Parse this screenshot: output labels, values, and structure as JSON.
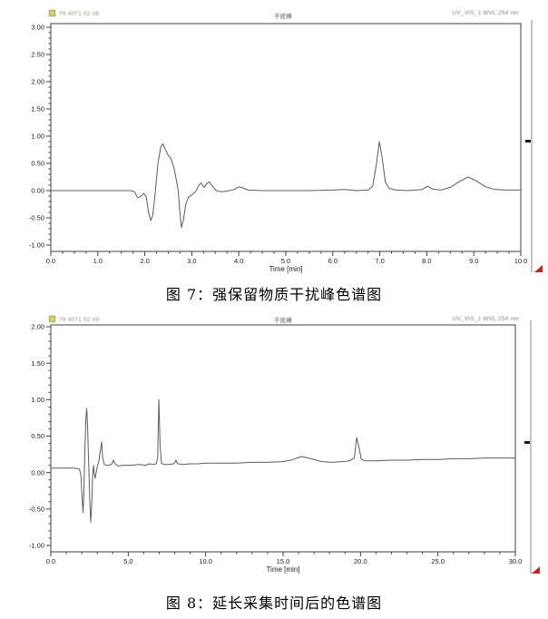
{
  "colors": {
    "trace": "#5c5c5c",
    "frame": "#3f3f3f",
    "tick_text": "#1f1f1f",
    "corner_marker_red": "#c0271d",
    "file_icon_yellow": "#d9d96e"
  },
  "figure7": {
    "caption": "图 7：强保留物质干扰峰色谱图",
    "header": {
      "left": "79 4071 02 #8",
      "center": "干扰峰",
      "right": "UV_VIS_1 WVL:254 nm"
    }
  },
  "figure8": {
    "caption": "图 8：延长采集时间后的色谱图",
    "header": {
      "left": "79 4071 02 #9",
      "center": "干扰峰",
      "right": "UV_VIS_1 WVL:254 nm"
    }
  },
  "chart_data": [
    {
      "type": "line",
      "title": "图 7：强保留物质干扰峰色谱图",
      "xlabel": "Time [min]",
      "ylabel": "",
      "xlim": [
        0,
        10
      ],
      "ylim": [
        -1.0,
        3.0
      ],
      "xtick_major": 1.0,
      "xtick_minor": 0.25,
      "ytick_major": 0.5,
      "ytick_minor": 0.1,
      "grid": false,
      "legend": "none",
      "series": [
        {
          "name": "UV_VIS_1",
          "points": [
            [
              0,
              0
            ],
            [
              0.5,
              0
            ],
            [
              1.0,
              0
            ],
            [
              1.5,
              0
            ],
            [
              1.7,
              0
            ],
            [
              1.78,
              -0.02
            ],
            [
              1.85,
              -0.13
            ],
            [
              1.92,
              -0.1
            ],
            [
              1.98,
              -0.05
            ],
            [
              2.03,
              -0.12
            ],
            [
              2.08,
              -0.4
            ],
            [
              2.13,
              -0.55
            ],
            [
              2.17,
              -0.45
            ],
            [
              2.22,
              -0.05
            ],
            [
              2.28,
              0.5
            ],
            [
              2.34,
              0.8
            ],
            [
              2.38,
              0.86
            ],
            [
              2.44,
              0.75
            ],
            [
              2.5,
              0.65
            ],
            [
              2.56,
              0.58
            ],
            [
              2.62,
              0.42
            ],
            [
              2.67,
              0.2
            ],
            [
              2.71,
              0.0
            ],
            [
              2.75,
              -0.45
            ],
            [
              2.78,
              -0.68
            ],
            [
              2.82,
              -0.55
            ],
            [
              2.87,
              -0.25
            ],
            [
              2.93,
              -0.12
            ],
            [
              3.0,
              -0.08
            ],
            [
              3.08,
              -0.02
            ],
            [
              3.15,
              0.1
            ],
            [
              3.2,
              0.14
            ],
            [
              3.26,
              0.06
            ],
            [
              3.32,
              0.13
            ],
            [
              3.37,
              0.16
            ],
            [
              3.44,
              0.08
            ],
            [
              3.52,
              0.0
            ],
            [
              3.62,
              -0.02
            ],
            [
              3.75,
              -0.01
            ],
            [
              3.9,
              0.02
            ],
            [
              4.0,
              0.07
            ],
            [
              4.08,
              0.05
            ],
            [
              4.2,
              0.01
            ],
            [
              4.5,
              0
            ],
            [
              5.0,
              0
            ],
            [
              5.5,
              0
            ],
            [
              6.0,
              0.01
            ],
            [
              6.25,
              0.02
            ],
            [
              6.5,
              0
            ],
            [
              6.75,
              0.01
            ],
            [
              6.85,
              0.08
            ],
            [
              6.93,
              0.5
            ],
            [
              6.99,
              0.9
            ],
            [
              7.05,
              0.6
            ],
            [
              7.12,
              0.15
            ],
            [
              7.2,
              0.04
            ],
            [
              7.35,
              0.01
            ],
            [
              7.6,
              0
            ],
            [
              7.9,
              0.02
            ],
            [
              8.02,
              0.08
            ],
            [
              8.12,
              0.03
            ],
            [
              8.3,
              0.01
            ],
            [
              8.5,
              0.06
            ],
            [
              8.7,
              0.17
            ],
            [
              8.88,
              0.25
            ],
            [
              9.05,
              0.18
            ],
            [
              9.25,
              0.07
            ],
            [
              9.45,
              0.02
            ],
            [
              9.7,
              0.01
            ],
            [
              10,
              0.01
            ]
          ]
        }
      ]
    },
    {
      "type": "line",
      "title": "图 8：延长采集时间后的色谱图",
      "xlabel": "Time [min]",
      "ylabel": "",
      "xlim": [
        0,
        30
      ],
      "ylim": [
        -1.0,
        2.0
      ],
      "xtick_major": 5.0,
      "xtick_minor": 1.0,
      "ytick_major": 0.5,
      "ytick_minor": 0.1,
      "grid": false,
      "legend": "none",
      "series": [
        {
          "name": "UV_VIS_1",
          "points": [
            [
              0,
              0.06
            ],
            [
              0.5,
              0.06
            ],
            [
              1.0,
              0.06
            ],
            [
              1.5,
              0.06
            ],
            [
              1.85,
              0.05
            ],
            [
              1.95,
              -0.05
            ],
            [
              2.02,
              -0.35
            ],
            [
              2.08,
              -0.55
            ],
            [
              2.13,
              -0.3
            ],
            [
              2.2,
              0.3
            ],
            [
              2.27,
              0.75
            ],
            [
              2.32,
              0.88
            ],
            [
              2.38,
              0.6
            ],
            [
              2.45,
              0.1
            ],
            [
              2.52,
              -0.4
            ],
            [
              2.58,
              -0.68
            ],
            [
              2.64,
              -0.45
            ],
            [
              2.7,
              -0.05
            ],
            [
              2.76,
              0.1
            ],
            [
              2.8,
              0.0
            ],
            [
              2.86,
              -0.08
            ],
            [
              2.93,
              0.0
            ],
            [
              3.0,
              0.08
            ],
            [
              3.1,
              0.15
            ],
            [
              3.2,
              0.3
            ],
            [
              3.28,
              0.42
            ],
            [
              3.35,
              0.2
            ],
            [
              3.45,
              0.11
            ],
            [
              3.6,
              0.1
            ],
            [
              3.8,
              0.1
            ],
            [
              3.95,
              0.12
            ],
            [
              4.05,
              0.17
            ],
            [
              4.15,
              0.12
            ],
            [
              4.35,
              0.09
            ],
            [
              4.7,
              0.1
            ],
            [
              5.2,
              0.1
            ],
            [
              5.7,
              0.11
            ],
            [
              6.1,
              0.1
            ],
            [
              6.4,
              0.12
            ],
            [
              6.6,
              0.11
            ],
            [
              6.8,
              0.12
            ],
            [
              6.9,
              0.2
            ],
            [
              6.98,
              1.0
            ],
            [
              7.06,
              0.35
            ],
            [
              7.15,
              0.13
            ],
            [
              7.3,
              0.11
            ],
            [
              7.6,
              0.11
            ],
            [
              7.95,
              0.12
            ],
            [
              8.08,
              0.17
            ],
            [
              8.2,
              0.12
            ],
            [
              8.5,
              0.11
            ],
            [
              9,
              0.12
            ],
            [
              9.5,
              0.12
            ],
            [
              10,
              0.13
            ],
            [
              11,
              0.13
            ],
            [
              12,
              0.13
            ],
            [
              13,
              0.14
            ],
            [
              14,
              0.14
            ],
            [
              15,
              0.15
            ],
            [
              15.5,
              0.17
            ],
            [
              16.2,
              0.22
            ],
            [
              16.8,
              0.19
            ],
            [
              17.5,
              0.15
            ],
            [
              18.2,
              0.14
            ],
            [
              18.8,
              0.15
            ],
            [
              19.3,
              0.16
            ],
            [
              19.6,
              0.2
            ],
            [
              19.75,
              0.48
            ],
            [
              19.9,
              0.35
            ],
            [
              20.05,
              0.18
            ],
            [
              20.3,
              0.16
            ],
            [
              21,
              0.16
            ],
            [
              22,
              0.17
            ],
            [
              23,
              0.17
            ],
            [
              24,
              0.18
            ],
            [
              25,
              0.18
            ],
            [
              26,
              0.19
            ],
            [
              27,
              0.19
            ],
            [
              28,
              0.2
            ],
            [
              29,
              0.2
            ],
            [
              30,
              0.2
            ]
          ]
        }
      ]
    }
  ]
}
